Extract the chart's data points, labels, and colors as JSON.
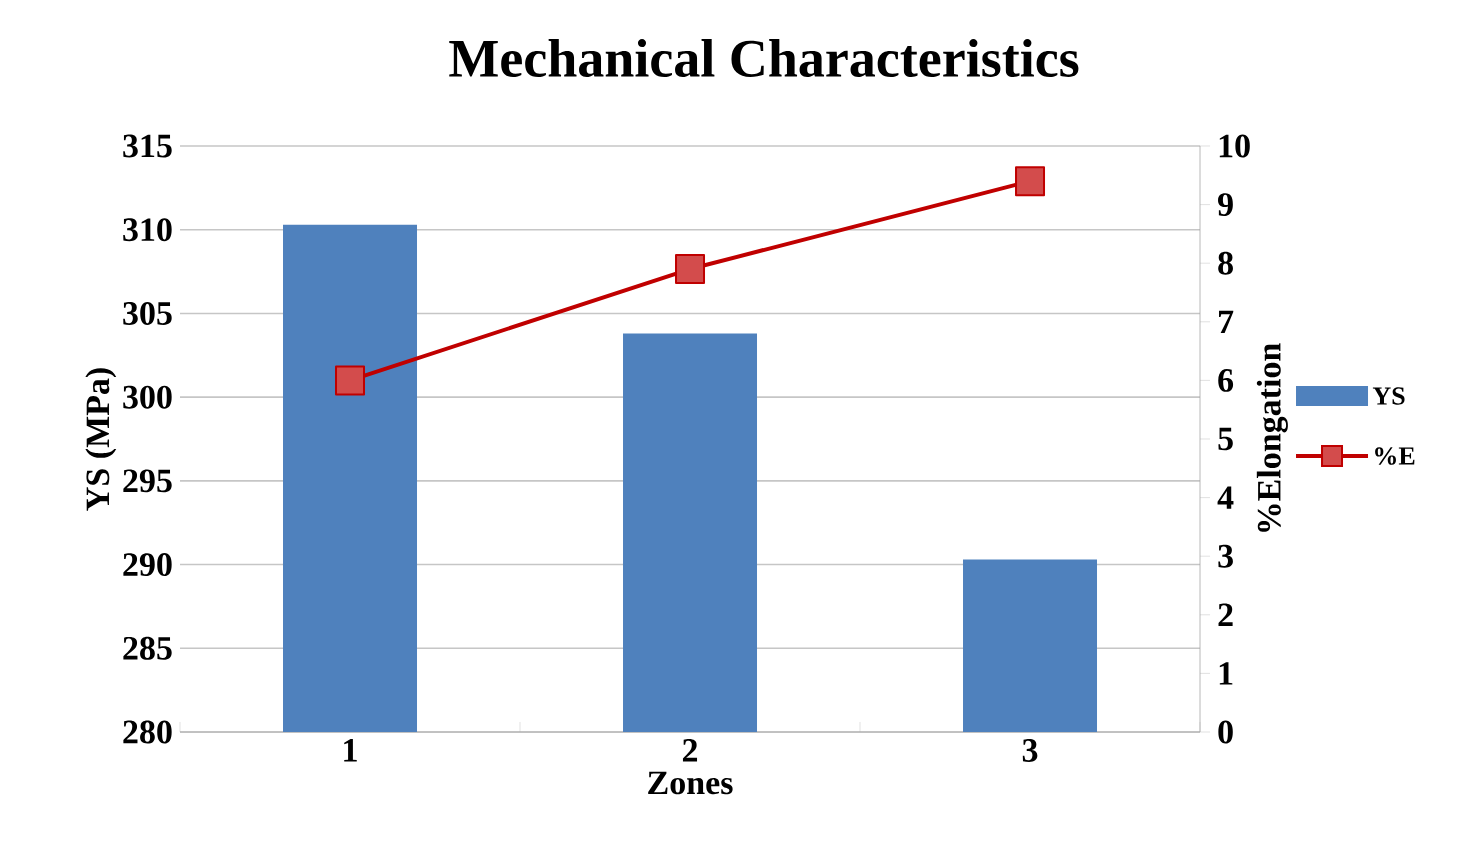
{
  "chart_data": {
    "type": "bar",
    "title": "Mechanical Characteristics",
    "xlabel": "Zones",
    "ylabel": "YS (MPa)",
    "y2label": "%Elongation",
    "categories": [
      "1",
      "2",
      "3"
    ],
    "series": [
      {
        "name": "YS",
        "color": "#4f81bd",
        "values": [
          310.3,
          303.8,
          290.3
        ]
      },
      {
        "name": "%E",
        "type": "line",
        "axis": "y2",
        "color": "#c00000",
        "marker": "square",
        "values": [
          6.0,
          7.9,
          9.4
        ]
      }
    ],
    "ylim": [
      280,
      315
    ],
    "yticks": [
      280,
      285,
      290,
      295,
      300,
      305,
      310,
      315
    ],
    "y2lim": [
      0,
      10
    ],
    "y2ticks": [
      0,
      1,
      2,
      3,
      4,
      5,
      6,
      7,
      8,
      9,
      10
    ],
    "grid": "y",
    "legend": "right"
  }
}
